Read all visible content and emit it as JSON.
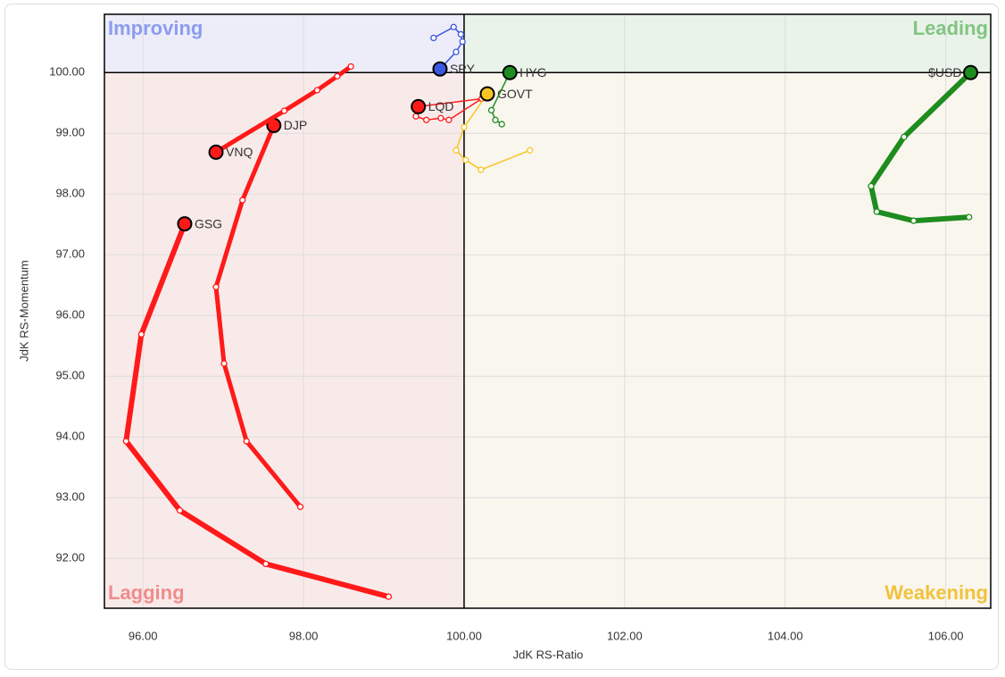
{
  "chart_data": {
    "type": "rrg",
    "x_label": "JdK RS-Ratio",
    "y_label": "JdK RS-Momentum",
    "xlim": [
      95.52,
      106.56
    ],
    "ylim": [
      91.18,
      100.96
    ],
    "xticks": [
      {
        "value": 96,
        "label": "96.00"
      },
      {
        "value": 98,
        "label": "98.00"
      },
      {
        "value": 100,
        "label": "100.00"
      },
      {
        "value": 102,
        "label": "102.00"
      },
      {
        "value": 104,
        "label": "104.00"
      },
      {
        "value": 106,
        "label": "106.00"
      }
    ],
    "yticks": [
      {
        "value": 92,
        "label": "92.00"
      },
      {
        "value": 93,
        "label": "93.00"
      },
      {
        "value": 94,
        "label": "94.00"
      },
      {
        "value": 95,
        "label": "95.00"
      },
      {
        "value": 96,
        "label": "96.00"
      },
      {
        "value": 97,
        "label": "97.00"
      },
      {
        "value": 98,
        "label": "98.00"
      },
      {
        "value": 99,
        "label": "99.00"
      },
      {
        "value": 100,
        "label": "100.00"
      }
    ],
    "grid": true,
    "center": [
      100,
      100
    ],
    "quadrants": [
      {
        "label": "Improving",
        "color": "#8b9cf0",
        "fill": "#ededf9",
        "corner": "top-left"
      },
      {
        "label": "Leading",
        "color": "#82c482",
        "fill": "#e9f3ea",
        "corner": "top-right"
      },
      {
        "label": "Lagging",
        "color": "#f08c8c",
        "fill": "#f9eaea",
        "corner": "bottom-left"
      },
      {
        "label": "Weakening",
        "color": "#f2c23c",
        "fill": "#f9f6ee",
        "corner": "bottom-right"
      }
    ],
    "series": [
      {
        "name": "GSG",
        "color": "#ff1a1a",
        "line_width": 6,
        "x": [
          99.06,
          97.53,
          96.46,
          95.79,
          95.98,
          96.52
        ],
        "y": [
          91.37,
          91.91,
          92.79,
          93.93,
          95.69,
          97.51
        ]
      },
      {
        "name": "DJP",
        "color": "#ff1a1a",
        "line_width": 5,
        "x": [
          97.96,
          97.29,
          97.01,
          96.91,
          97.24,
          97.63
        ],
        "y": [
          92.85,
          93.93,
          95.21,
          96.47,
          97.9,
          99.13
        ]
      },
      {
        "name": "VNQ",
        "color": "#ff1a1a",
        "line_width": 5,
        "x": [
          98.59,
          98.42,
          98.17,
          97.76,
          96.91
        ],
        "y": [
          100.1,
          99.94,
          99.71,
          99.37,
          98.69
        ]
      },
      {
        "name": "LQD",
        "color": "#ff1a1a",
        "line_width": 1.5,
        "x": [
          99.4,
          99.53,
          99.71,
          99.81,
          100.22,
          99.43
        ],
        "y": [
          99.28,
          99.22,
          99.25,
          99.22,
          99.57,
          99.44
        ]
      },
      {
        "name": "SPY",
        "color": "#3a57e0",
        "line_width": 1.5,
        "x": [
          99.62,
          99.87,
          99.96,
          99.98,
          99.9,
          99.7
        ],
        "y": [
          100.57,
          100.75,
          100.63,
          100.51,
          100.34,
          100.06
        ]
      },
      {
        "name": "GOVT",
        "color": "#f5c623",
        "line_width": 1.5,
        "x": [
          100.82,
          100.21,
          100.02,
          99.9,
          100.0,
          100.29
        ],
        "y": [
          98.72,
          98.4,
          98.56,
          98.72,
          99.1,
          99.65
        ]
      },
      {
        "name": "HYG",
        "color": "#1e8c1e",
        "line_width": 1.5,
        "x": [
          100.47,
          100.39,
          100.34,
          100.57
        ],
        "y": [
          99.15,
          99.22,
          99.38,
          100.0
        ]
      },
      {
        "name": "$USD",
        "color": "#1e8c1e",
        "line_width": 6,
        "x": [
          106.29,
          105.6,
          105.14,
          105.07,
          105.48,
          106.31
        ],
        "y": [
          97.62,
          97.56,
          97.71,
          98.13,
          98.94,
          100.0
        ]
      }
    ]
  }
}
